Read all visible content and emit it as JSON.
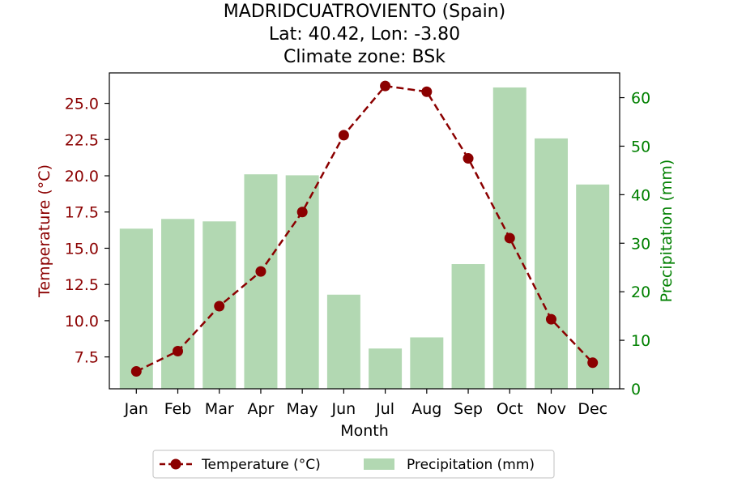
{
  "chart_data": {
    "type": "bar+line",
    "title": [
      "MADRIDCUATROVIENTO (Spain)",
      "Lat: 40.42, Lon: -3.80",
      "Climate zone: BSk"
    ],
    "xlabel": "Month",
    "ylabel_left": "Temperature (°C)",
    "ylabel_right": "Precipitation (mm)",
    "categories": [
      "Jan",
      "Feb",
      "Mar",
      "Apr",
      "May",
      "Jun",
      "Jul",
      "Aug",
      "Sep",
      "Oct",
      "Nov",
      "Dec"
    ],
    "series": [
      {
        "name": "Temperature (°C)",
        "kind": "line",
        "axis": "left",
        "color": "#8b0000",
        "values": [
          6.5,
          7.9,
          11.0,
          13.4,
          17.5,
          22.8,
          26.2,
          25.8,
          21.2,
          15.7,
          10.1,
          7.1
        ]
      },
      {
        "name": "Precipitation (mm)",
        "kind": "bar",
        "axis": "right",
        "color": "#b2d8b2",
        "values": [
          33,
          35,
          34.5,
          44.2,
          44,
          19.4,
          8.3,
          10.6,
          25.7,
          62.1,
          51.6,
          42.1
        ]
      }
    ],
    "ylim_left": [
      5.3,
      27.1
    ],
    "ylim_right": [
      0,
      65.1
    ],
    "yticks_left": [
      "7.5",
      "10.0",
      "12.5",
      "15.0",
      "17.5",
      "20.0",
      "22.5",
      "25.0"
    ],
    "yticks_right": [
      "0",
      "10",
      "20",
      "30",
      "40",
      "50",
      "60"
    ],
    "left_axis_color": "#8b0000",
    "right_axis_color": "#008000",
    "legend_placement": "bottom-center",
    "grid": false
  }
}
